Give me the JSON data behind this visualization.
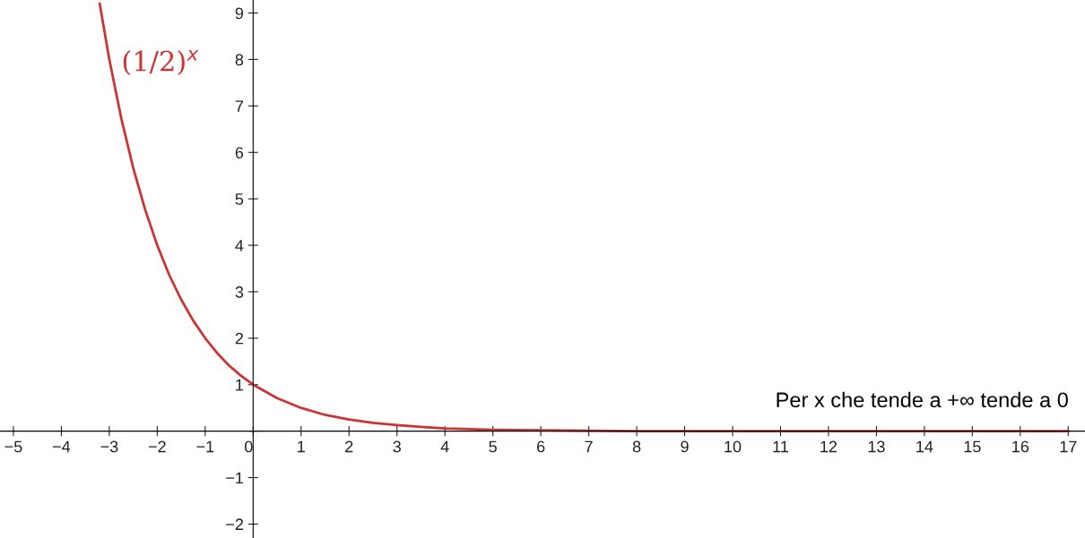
{
  "chart_data": {
    "type": "line",
    "x": [
      -3.2,
      -3,
      -2.75,
      -2.5,
      -2.25,
      -2,
      -1.75,
      -1.5,
      -1.25,
      -1,
      -0.75,
      -0.5,
      -0.25,
      0,
      0.5,
      1,
      1.5,
      2,
      2.5,
      3,
      3.5,
      4,
      5,
      6,
      7,
      8,
      10,
      12,
      14,
      17
    ],
    "series": [
      {
        "name": "(1/2)$^{x}$",
        "color": "#cc3333",
        "values": [
          9.2,
          8,
          6.73,
          5.66,
          4.76,
          4,
          3.36,
          2.83,
          2.38,
          2,
          1.68,
          1.41,
          1.19,
          1,
          0.71,
          0.5,
          0.35,
          0.25,
          0.18,
          0.13,
          0.09,
          0.06,
          0.03,
          0.02,
          0.01,
          0,
          0,
          0,
          0,
          0
        ]
      }
    ],
    "xlim": [
      -5.28,
      17.35
    ],
    "ylim": [
      -2.3,
      9.28
    ],
    "xticks": [
      -5,
      -4,
      -3,
      -2,
      -1,
      0,
      1,
      2,
      3,
      4,
      5,
      6,
      7,
      8,
      9,
      10,
      11,
      12,
      13,
      14,
      15,
      16,
      17
    ],
    "yticks": [
      -2,
      -1,
      {
        "value": 0,
        "label": null
      },
      1,
      2,
      3,
      4,
      5,
      6,
      7,
      8,
      9
    ],
    "annotations": [
      "Per x che tende a +∞ tende a 0"
    ],
    "grid": false,
    "legend": false,
    "marker": "none",
    "line_style": "solid"
  }
}
